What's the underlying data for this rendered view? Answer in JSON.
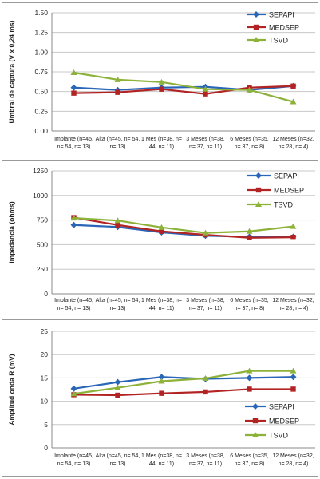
{
  "chart_data": [
    {
      "type": "line",
      "ylabel": "Umbral de captura (V x 0,24 ms)",
      "xlabel": "",
      "ylim": [
        0,
        1.5
      ],
      "yticks": [
        "0.00",
        "0.25",
        "0.50",
        "0.75",
        "1.00",
        "1.25",
        "1.50"
      ],
      "categories": [
        [
          "Implante (n=45,",
          "n= 54, n= 13)"
        ],
        [
          "Alta (n=45, n= 54,",
          "n= 13)"
        ],
        [
          "1 Mes (n=38, n=",
          "44, n= 11)"
        ],
        [
          "3 Meses (n=38,",
          "n= 37, n= 11)"
        ],
        [
          "6 Meses (n=35,",
          "n= 37, n= 8)"
        ],
        [
          "12 Meses (n=32,",
          "n= 28, n= 4)"
        ]
      ],
      "legend_position": "top-right",
      "grid": "horizontal",
      "series": [
        {
          "name": "SEPAPI",
          "color": "#2a66b8",
          "marker": "diamond",
          "values": [
            0.55,
            0.52,
            0.55,
            0.56,
            0.52,
            0.57
          ]
        },
        {
          "name": "MEDSEP",
          "color": "#b22424",
          "marker": "square",
          "values": [
            0.48,
            0.49,
            0.53,
            0.47,
            0.55,
            0.57
          ]
        },
        {
          "name": "TSVD",
          "color": "#8db23a",
          "marker": "triangle",
          "values": [
            0.74,
            0.65,
            0.62,
            0.53,
            0.52,
            0.37
          ]
        }
      ]
    },
    {
      "type": "line",
      "ylabel": "Impedancia (ohms)",
      "xlabel": "",
      "ylim": [
        0,
        1250
      ],
      "yticks": [
        "0",
        "250",
        "500",
        "750",
        "1000",
        "1250"
      ],
      "categories": [
        [
          "Implante (n=45,",
          "n= 54, n= 13)"
        ],
        [
          "Alta (n=45, n= 54,",
          "n= 13)"
        ],
        [
          "1 Mes (n=38, n=",
          "44, n= 11)"
        ],
        [
          "3 Meses (n=38,",
          "n= 37, n= 11)"
        ],
        [
          "6 Meses (n=35,",
          "n= 37, n= 8)"
        ],
        [
          "12 Meses (n=32,",
          "n= 28, n= 4)"
        ]
      ],
      "legend_position": "top-right",
      "grid": "horizontal",
      "series": [
        {
          "name": "SEPAPI",
          "color": "#2a66b8",
          "marker": "diamond",
          "values": [
            700,
            680,
            625,
            590,
            580,
            580
          ]
        },
        {
          "name": "MEDSEP",
          "color": "#b22424",
          "marker": "square",
          "values": [
            775,
            700,
            635,
            600,
            570,
            575
          ]
        },
        {
          "name": "TSVD",
          "color": "#8db23a",
          "marker": "triangle",
          "values": [
            770,
            745,
            675,
            620,
            635,
            685
          ]
        }
      ]
    },
    {
      "type": "line",
      "ylabel": "Amplitud onda R (mV)",
      "xlabel": "",
      "ylim": [
        0,
        25
      ],
      "yticks": [
        "0",
        "5",
        "10",
        "15",
        "20",
        "25"
      ],
      "categories": [
        [
          "Implante (n=45,",
          "n= 54, n= 13)"
        ],
        [
          "Alta (n=45, n= 54,",
          "n= 13)"
        ],
        [
          "1 Mes (n=38, n=",
          "44, n= 11)"
        ],
        [
          "3 Meses (n=38,",
          "n= 37, n= 11)"
        ],
        [
          "6 Meses (n=35,",
          "n= 37, n= 8)"
        ],
        [
          "12 Meses (n=32,",
          "n= 28, n= 4)"
        ]
      ],
      "legend_position": "bottom-right",
      "grid": "horizontal",
      "series": [
        {
          "name": "SEPAPI",
          "color": "#2a66b8",
          "marker": "diamond",
          "values": [
            12.7,
            14.1,
            15.2,
            14.8,
            15.0,
            15.2
          ]
        },
        {
          "name": "MEDSEP",
          "color": "#b22424",
          "marker": "square",
          "values": [
            11.4,
            11.3,
            11.7,
            12.0,
            12.6,
            12.6
          ]
        },
        {
          "name": "TSVD",
          "color": "#8db23a",
          "marker": "triangle",
          "values": [
            11.6,
            12.9,
            14.3,
            14.9,
            16.5,
            16.5
          ]
        }
      ]
    }
  ]
}
